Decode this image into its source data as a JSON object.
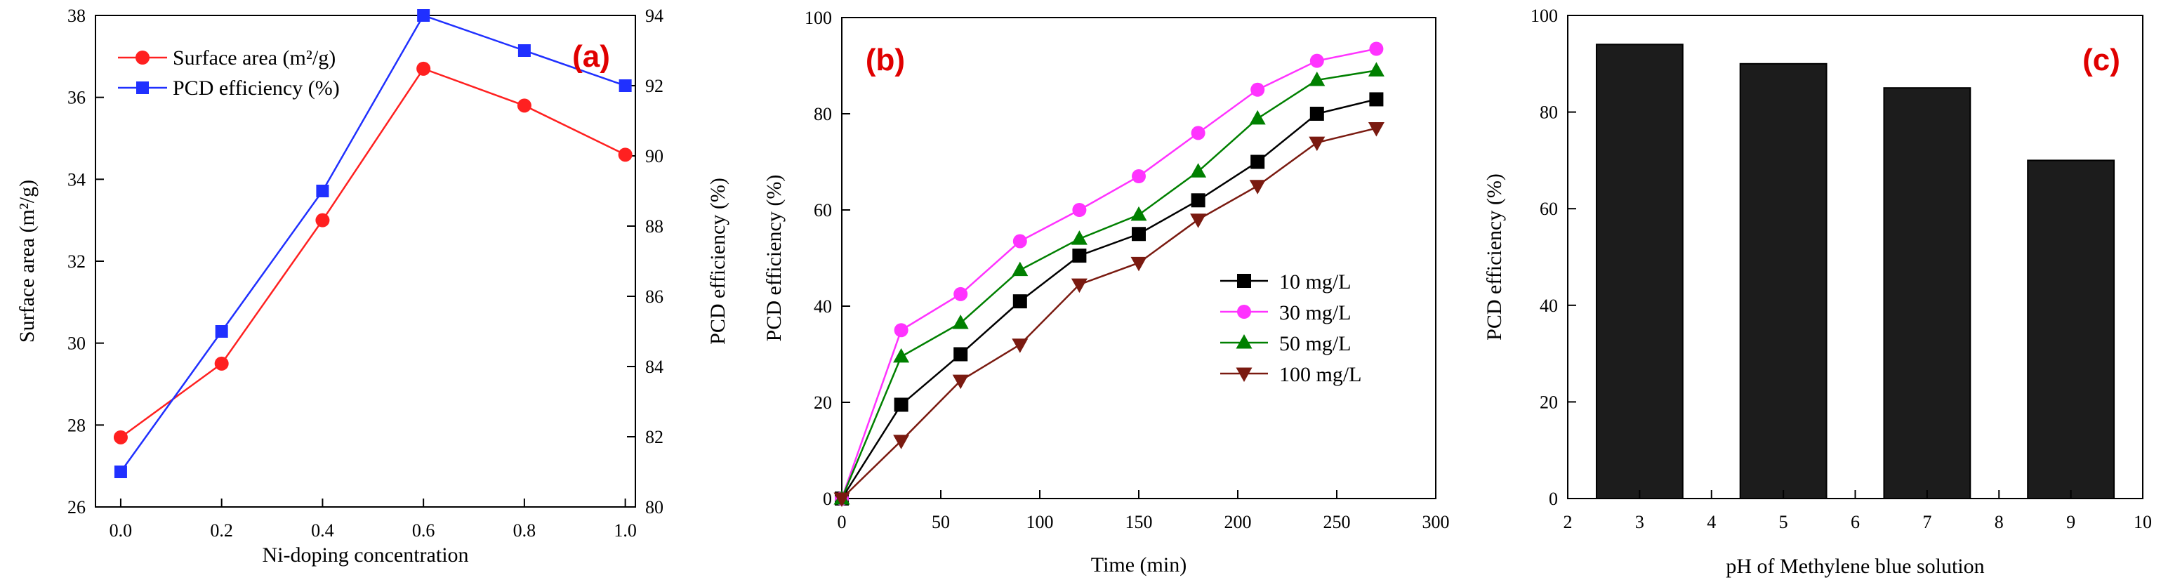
{
  "chart_data": [
    {
      "panel_label": "(a)",
      "type": "line",
      "x": [
        0.0,
        0.2,
        0.4,
        0.6,
        0.8,
        1.0
      ],
      "xlabel": "Ni-doping concentration",
      "ylabel": "Surface area (m²/g)",
      "ylabel_right": "PCD efficiency (%)",
      "xlim": [
        -0.05,
        1.02
      ],
      "ylim": [
        26,
        38
      ],
      "ylim_right": [
        80,
        94
      ],
      "x_ticks": [
        "0.0",
        "0.2",
        "0.4",
        "0.6",
        "0.8",
        "1.0"
      ],
      "y_ticks": [
        "26",
        "28",
        "30",
        "32",
        "34",
        "36",
        "38"
      ],
      "y_ticks_right": [
        "80",
        "82",
        "84",
        "86",
        "88",
        "90",
        "92",
        "94"
      ],
      "legend_position": "top-left",
      "series": [
        {
          "name": "Surface area (m²/g)",
          "axis": "left",
          "color": "#ff2020",
          "marker": "circle",
          "values": [
            27.7,
            29.5,
            33.0,
            36.7,
            35.8,
            34.6
          ]
        },
        {
          "name": "PCD efficiency (%)",
          "axis": "right",
          "color": "#2030ff",
          "marker": "square",
          "values": [
            81.0,
            85.0,
            89.0,
            94.0,
            93.0,
            92.0
          ]
        }
      ]
    },
    {
      "panel_label": "(b)",
      "type": "line",
      "x": [
        0,
        30,
        60,
        90,
        120,
        150,
        180,
        210,
        240,
        270
      ],
      "xlabel": "Time (min)",
      "ylabel": "PCD efficiency (%)",
      "xlim": [
        0,
        300
      ],
      "ylim": [
        0,
        100
      ],
      "x_ticks": [
        "0",
        "50",
        "100",
        "150",
        "200",
        "250",
        "300"
      ],
      "y_ticks": [
        "0",
        "20",
        "40",
        "60",
        "80",
        "100"
      ],
      "legend_position": "center-right",
      "series": [
        {
          "name": "10 mg/L",
          "color": "#000000",
          "marker": "square",
          "values": [
            0,
            19.5,
            30,
            41,
            50.5,
            55,
            62,
            70,
            80,
            83
          ]
        },
        {
          "name": "30 mg/L",
          "color": "#ff33ff",
          "marker": "circle",
          "values": [
            0,
            35,
            42.5,
            53.5,
            60,
            67,
            76,
            85,
            91,
            93.5
          ]
        },
        {
          "name": "50 mg/L",
          "color": "#008000",
          "marker": "triangle-up",
          "values": [
            0,
            29.5,
            36.5,
            47.5,
            54,
            59,
            68,
            79,
            87,
            89
          ]
        },
        {
          "name": "100 mg/L",
          "color": "#7a1a10",
          "marker": "triangle-down",
          "values": [
            0,
            12,
            24.5,
            32,
            44.5,
            49,
            58,
            65,
            74,
            77
          ]
        }
      ]
    },
    {
      "panel_label": "(c)",
      "type": "bar",
      "x": [
        3,
        5,
        7,
        9
      ],
      "values": [
        94,
        90,
        85,
        70
      ],
      "bar_width": 1.2,
      "xlabel": "pH of Methylene blue solution",
      "ylabel": "PCD efficiency (%)",
      "xlim": [
        2,
        10
      ],
      "ylim": [
        0,
        100
      ],
      "x_ticks": [
        "2",
        "3",
        "4",
        "5",
        "6",
        "7",
        "8",
        "9",
        "10"
      ],
      "y_ticks": [
        "0",
        "20",
        "40",
        "60",
        "80",
        "100"
      ],
      "color": "#1c1c1c"
    }
  ]
}
